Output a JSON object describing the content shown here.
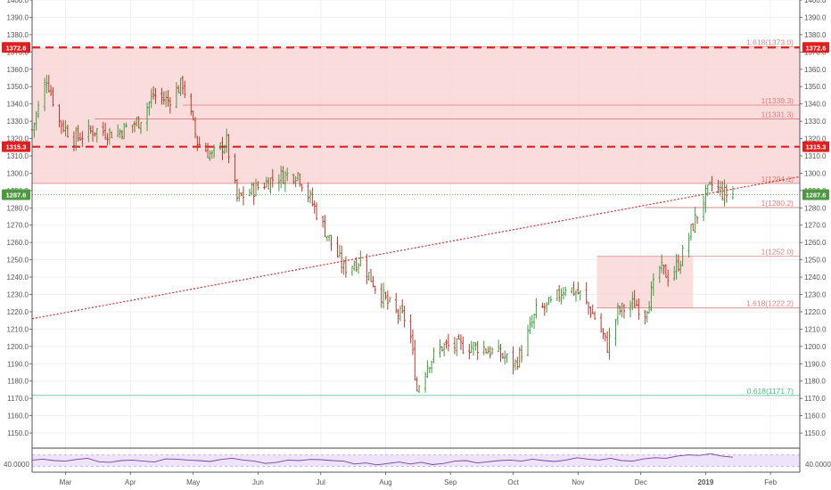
{
  "colors": {
    "up_candle": "#3f9d3f",
    "down_candle": "#c0392b",
    "resistance_zone": "#f9d6d6",
    "resistance_line": "#e02020",
    "fib_line": "#d86a6a",
    "fib_green": "#2bb06e",
    "trendline": "#d32f2f",
    "rsi_fill": "#ede3fb",
    "rsi_line": "#7b3f9e",
    "price_badge": "#4c9a3f"
  },
  "chart_data": {
    "type": "candlestick",
    "y_axis": {
      "range": [
        1141.8,
        1400.0
      ],
      "ticks": [
        1150,
        1160,
        1170,
        1180,
        1190,
        1200,
        1210,
        1220,
        1230,
        1240,
        1250,
        1260,
        1270,
        1280,
        1290,
        1300,
        1310,
        1320,
        1330,
        1340,
        1350,
        1360,
        1370,
        1380,
        1390,
        1400
      ],
      "tick_labels": [
        "1150.0",
        "1160.0",
        "1170.0",
        "1180.0",
        "1190.0",
        "1200.0",
        "1210.0",
        "1220.0",
        "1230.0",
        "1240.0",
        "1250.0",
        "1260.0",
        "1270.0",
        "1280.0",
        "1290.0",
        "1300.0",
        "1310.0",
        "1320.0",
        "1330.0",
        "1340.0",
        "1350.0",
        "1360.0",
        "1370.0",
        "1380.0",
        "1390.0",
        "1400.0"
      ]
    },
    "x_axis": {
      "labels": [
        "Mar",
        "Apr",
        "May",
        "Jun",
        "Jul",
        "Aug",
        "Sep",
        "Oct",
        "Nov",
        "Dec",
        "2019",
        "Feb"
      ],
      "label_dates": [
        "2018-03-01",
        "2018-04-01",
        "2018-05-01",
        "2018-06-01",
        "2018-07-01",
        "2018-08-01",
        "2018-09-01",
        "2018-10-01",
        "2018-11-01",
        "2018-12-01",
        "2019-01-01",
        "2019-02-01"
      ],
      "range": [
        "2018-02-13",
        "2019-02-15"
      ]
    },
    "price_path": [
      {
        "date": "2018-02-13",
        "close": 1325
      },
      {
        "date": "2018-02-20",
        "close": 1355
      },
      {
        "date": "2018-02-26",
        "close": 1330
      },
      {
        "date": "2018-03-05",
        "close": 1320
      },
      {
        "date": "2018-03-15",
        "close": 1325
      },
      {
        "date": "2018-03-25",
        "close": 1323
      },
      {
        "date": "2018-04-05",
        "close": 1330
      },
      {
        "date": "2018-04-12",
        "close": 1345
      },
      {
        "date": "2018-04-19",
        "close": 1342
      },
      {
        "date": "2018-04-26",
        "close": 1352
      },
      {
        "date": "2018-05-03",
        "close": 1318
      },
      {
        "date": "2018-05-10",
        "close": 1310
      },
      {
        "date": "2018-05-17",
        "close": 1318
      },
      {
        "date": "2018-05-22",
        "close": 1285
      },
      {
        "date": "2018-05-29",
        "close": 1290
      },
      {
        "date": "2018-06-10",
        "close": 1298
      },
      {
        "date": "2018-06-20",
        "close": 1300
      },
      {
        "date": "2018-06-28",
        "close": 1280
      },
      {
        "date": "2018-07-05",
        "close": 1262
      },
      {
        "date": "2018-07-12",
        "close": 1245
      },
      {
        "date": "2018-07-20",
        "close": 1250
      },
      {
        "date": "2018-07-27",
        "close": 1235
      },
      {
        "date": "2018-08-05",
        "close": 1220
      },
      {
        "date": "2018-08-12",
        "close": 1215
      },
      {
        "date": "2018-08-16",
        "close": 1175
      },
      {
        "date": "2018-08-21",
        "close": 1190
      },
      {
        "date": "2018-08-28",
        "close": 1200
      },
      {
        "date": "2018-09-05",
        "close": 1200
      },
      {
        "date": "2018-09-15",
        "close": 1200
      },
      {
        "date": "2018-09-25",
        "close": 1195
      },
      {
        "date": "2018-10-02",
        "close": 1190
      },
      {
        "date": "2018-10-06",
        "close": 1200
      },
      {
        "date": "2018-10-12",
        "close": 1220
      },
      {
        "date": "2018-10-20",
        "close": 1225
      },
      {
        "date": "2018-10-26",
        "close": 1235
      },
      {
        "date": "2018-11-02",
        "close": 1230
      },
      {
        "date": "2018-11-10",
        "close": 1215
      },
      {
        "date": "2018-11-15",
        "close": 1200
      },
      {
        "date": "2018-11-20",
        "close": 1220
      },
      {
        "date": "2018-11-28",
        "close": 1225
      },
      {
        "date": "2018-12-03",
        "close": 1220
      },
      {
        "date": "2018-12-10",
        "close": 1245
      },
      {
        "date": "2018-12-15",
        "close": 1240
      },
      {
        "date": "2018-12-20",
        "close": 1250
      },
      {
        "date": "2018-12-26",
        "close": 1270
      },
      {
        "date": "2018-12-31",
        "close": 1285
      },
      {
        "date": "2019-01-04",
        "close": 1293
      },
      {
        "date": "2019-01-10",
        "close": 1288
      },
      {
        "date": "2019-01-14",
        "close": 1288
      }
    ],
    "resistance_zone": {
      "from": 1294.0,
      "to": 1372.6,
      "start": "2018-02-13",
      "end": "2019-02-15"
    },
    "resistance_lines": [
      1372.6,
      1315.3
    ],
    "price_badges": [
      {
        "value": 1372.6,
        "label": "1372.6",
        "kind": "resistance"
      },
      {
        "value": 1315.3,
        "label": "1315.3",
        "kind": "resistance"
      },
      {
        "value": 1287.6,
        "label": "1287.6",
        "kind": "last"
      }
    ],
    "last_price": 1287.6,
    "fib_levels": [
      {
        "value": 1373.0,
        "label": "1.618(1373.0)",
        "start": "2018-06-18",
        "end": "2019-02-15"
      },
      {
        "value": 1339.3,
        "label": "1(1339.3)",
        "start": "2018-04-26",
        "end": "2019-02-15"
      },
      {
        "value": 1331.3,
        "label": "1(1331.3)",
        "start": "2018-03-15",
        "end": "2019-02-15"
      },
      {
        "value": 1294.1,
        "label": "1(1294.1)",
        "start": "2018-02-13",
        "end": "2019-02-15"
      },
      {
        "value": 1280.2,
        "label": "1(1280.2)",
        "start": "2018-12-03",
        "end": "2019-02-15"
      },
      {
        "value": 1252.0,
        "label": "1(1252.0)",
        "start": "2018-11-10",
        "end": "2019-02-15"
      },
      {
        "value": 1222.2,
        "label": "1.618(1222.2)",
        "start": "2018-11-10",
        "end": "2019-02-15"
      },
      {
        "value": 1171.7,
        "label": "0.618(1171.7)",
        "start": "2018-02-13",
        "end": "2019-02-15",
        "color": "green"
      }
    ],
    "fib_zone_small": {
      "from": 1222.2,
      "to": 1252.0,
      "start": "2018-11-10",
      "end": "2018-12-26"
    },
    "trendline": {
      "points": [
        {
          "date": "2018-02-13",
          "value": 1216
        },
        {
          "date": "2019-02-15",
          "value": 1298
        }
      ],
      "style": "dotted"
    },
    "rsi": {
      "label": "40.0000",
      "upper": 70,
      "lower": 30,
      "values": [
        52,
        55,
        50,
        48,
        54,
        58,
        46,
        44,
        50,
        52,
        48,
        45,
        56,
        55,
        52,
        50,
        47,
        54,
        58,
        52,
        48,
        40,
        44,
        52,
        50,
        54,
        53,
        50,
        48,
        38,
        42,
        35,
        40,
        45,
        38,
        44,
        36,
        40,
        48,
        50,
        42,
        46,
        50,
        52,
        48,
        55,
        50,
        47,
        52,
        60,
        55,
        52,
        58,
        50,
        48,
        56,
        60,
        58,
        66,
        70,
        68,
        74,
        66,
        62
      ]
    }
  }
}
